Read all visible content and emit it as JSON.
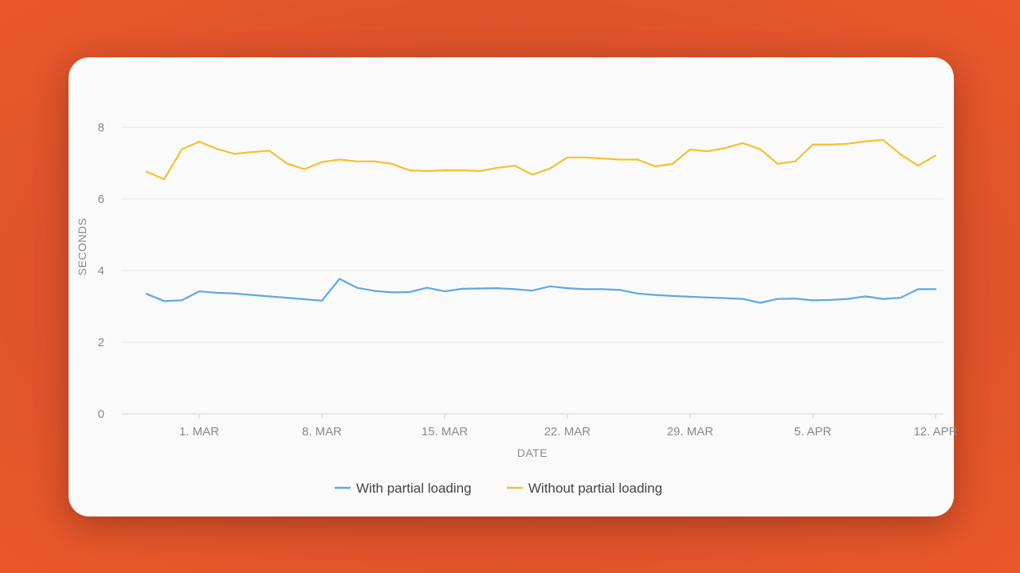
{
  "chart_data": {
    "type": "line",
    "xlabel": "DATE",
    "ylabel": "SECONDS",
    "ylim": [
      0,
      8.8
    ],
    "y_ticks": [
      0,
      2,
      4,
      6,
      8
    ],
    "y_tick_labels": [
      "0",
      "2",
      "4",
      "6",
      "8"
    ],
    "x_tick_positions": [
      3,
      10,
      17,
      24,
      31,
      38,
      45
    ],
    "x_tick_labels": [
      "1. MAR",
      "8. MAR",
      "15. MAR",
      "22. MAR",
      "29. MAR",
      "5. APR",
      "12. APR"
    ],
    "x_range": [
      -1.5,
      45.5
    ],
    "grid": true,
    "legend_position": "bottom-center",
    "series": [
      {
        "name": "With partial loading",
        "color": "#5ea7e6",
        "x": [
          0,
          1,
          2,
          3,
          4,
          5,
          6,
          7,
          8,
          9,
          10,
          11,
          12,
          13,
          14,
          15,
          16,
          17,
          18,
          19,
          20,
          21,
          22,
          23,
          24,
          25,
          26,
          27,
          28,
          29,
          30,
          31,
          32,
          33,
          34,
          35,
          36,
          37,
          38,
          39,
          40,
          41,
          42,
          43,
          44,
          45
        ],
        "values": [
          3.35,
          3.15,
          3.17,
          3.42,
          3.38,
          3.36,
          3.32,
          3.28,
          3.24,
          3.2,
          3.16,
          3.77,
          3.52,
          3.43,
          3.39,
          3.4,
          3.52,
          3.42,
          3.49,
          3.5,
          3.51,
          3.48,
          3.44,
          3.56,
          3.51,
          3.48,
          3.48,
          3.46,
          3.36,
          3.32,
          3.29,
          3.27,
          3.25,
          3.23,
          3.21,
          3.1,
          3.21,
          3.22,
          3.17,
          3.18,
          3.21,
          3.28,
          3.21,
          3.24,
          3.48,
          3.48
        ]
      },
      {
        "name": "Without partial loading",
        "color": "#f5c02c",
        "x": [
          0,
          1,
          2,
          3,
          4,
          5,
          6,
          7,
          8,
          9,
          10,
          11,
          12,
          13,
          14,
          15,
          16,
          17,
          18,
          19,
          20,
          21,
          22,
          23,
          24,
          25,
          26,
          27,
          28,
          29,
          30,
          31,
          32,
          33,
          34,
          35,
          36,
          37,
          38,
          39,
          40,
          41,
          42,
          43,
          44,
          45
        ],
        "values": [
          6.76,
          6.55,
          7.38,
          7.6,
          7.4,
          7.26,
          7.31,
          7.35,
          6.99,
          6.83,
          7.03,
          7.1,
          7.05,
          7.05,
          6.98,
          6.8,
          6.78,
          6.8,
          6.8,
          6.78,
          6.87,
          6.93,
          6.68,
          6.85,
          7.16,
          7.16,
          7.13,
          7.1,
          7.1,
          6.91,
          6.98,
          7.38,
          7.33,
          7.42,
          7.56,
          7.39,
          6.98,
          7.05,
          7.52,
          7.52,
          7.54,
          7.61,
          7.65,
          7.25,
          6.93,
          7.21
        ]
      }
    ]
  }
}
